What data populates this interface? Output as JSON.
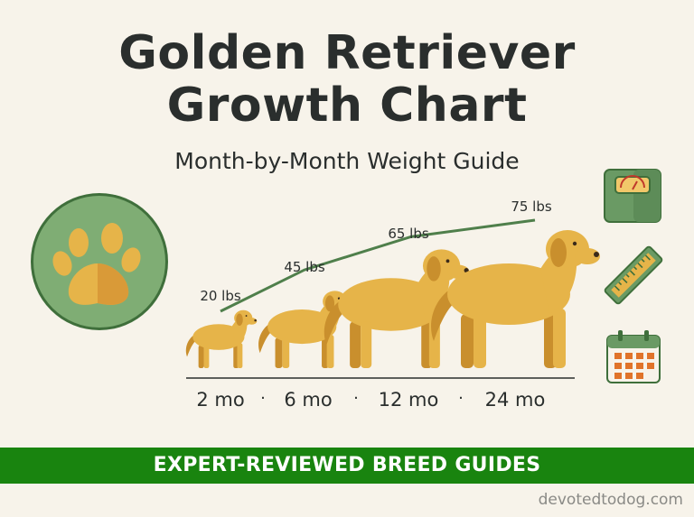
{
  "header": {
    "title_line1": "Golden Retriever",
    "title_line2": "Growth Chart",
    "subtitle": "Month-by-Month Weight Guide"
  },
  "chart_data": {
    "type": "line",
    "title": "",
    "xlabel": "",
    "ylabel": "",
    "categories": [
      "2 mo",
      "6 mo",
      "12 mo",
      "24 mo"
    ],
    "series": [
      {
        "values": [
          20,
          45,
          65,
          75
        ],
        "labels": [
          "20 lbs",
          "45 lbs",
          "65 lbs",
          "75 lbs"
        ]
      }
    ],
    "separator": "·",
    "grid": false,
    "legend": "none",
    "line_color": "#4f7f4b"
  },
  "colors": {
    "background": "#f7f3ea",
    "dog": "#e6b449",
    "dog_shadow": "#c98f2d",
    "accent_green": "#19840f",
    "icon_green": "#6a9a64"
  },
  "icons": [
    "paw-icon",
    "scale-icon",
    "ruler-icon",
    "calendar-icon"
  ],
  "banner": {
    "text": "EXPERT-REVIEWED BREED GUIDES"
  },
  "footer": {
    "site": "devotedtodog.com"
  }
}
